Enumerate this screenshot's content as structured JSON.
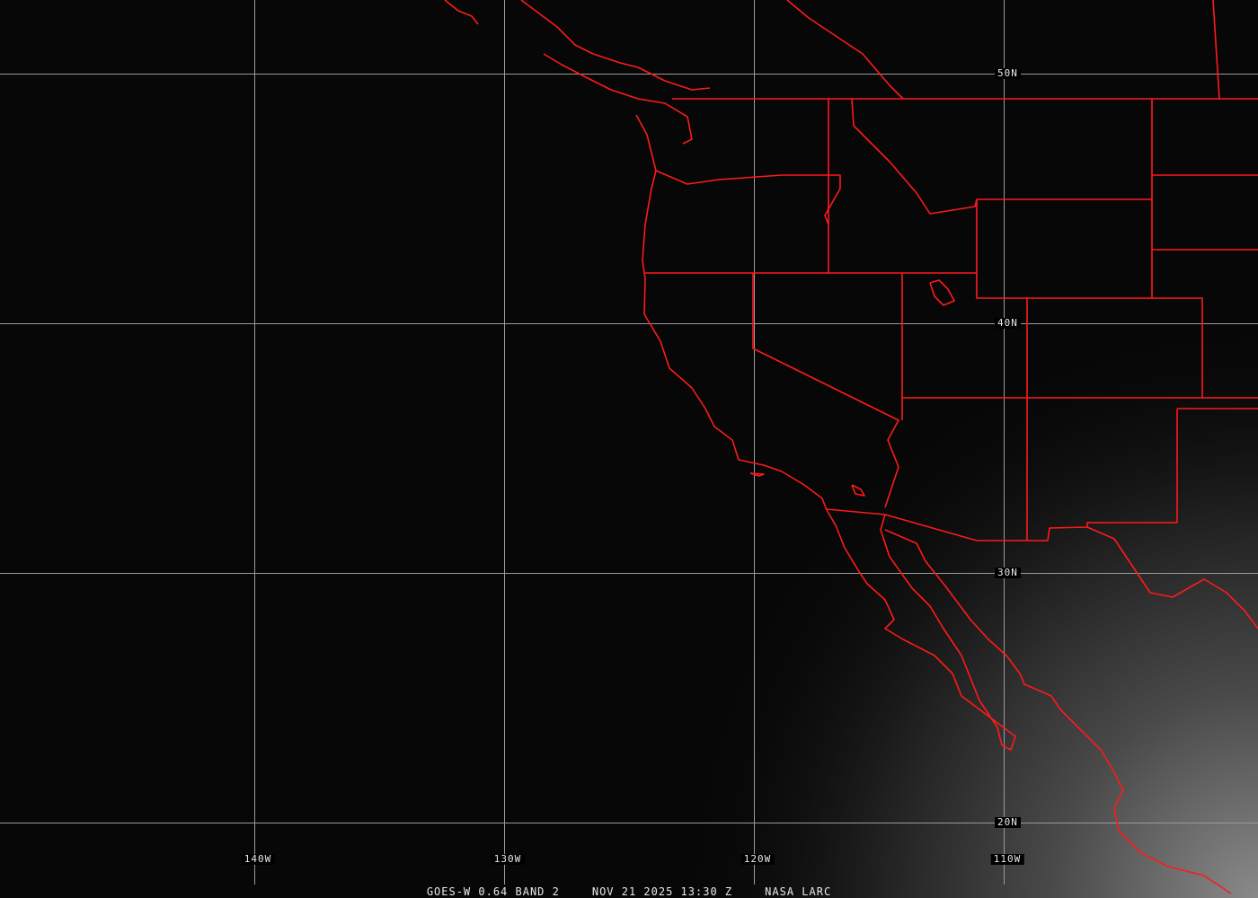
{
  "footer": {
    "satellite": "GOES-W 0.64 BAND 2",
    "datetime": "NOV 21 2025 13:30 Z",
    "credit": "NASA LARC"
  },
  "grid": {
    "latitudes": [
      "50N",
      "40N",
      "30N",
      "20N"
    ],
    "longitudes": [
      "140W",
      "130W",
      "120W",
      "110W"
    ]
  },
  "colors": {
    "background": "#070707",
    "borders": "#ff1a1a",
    "gridlines": "#9a9a9a",
    "labels": "#e8e8e8"
  }
}
